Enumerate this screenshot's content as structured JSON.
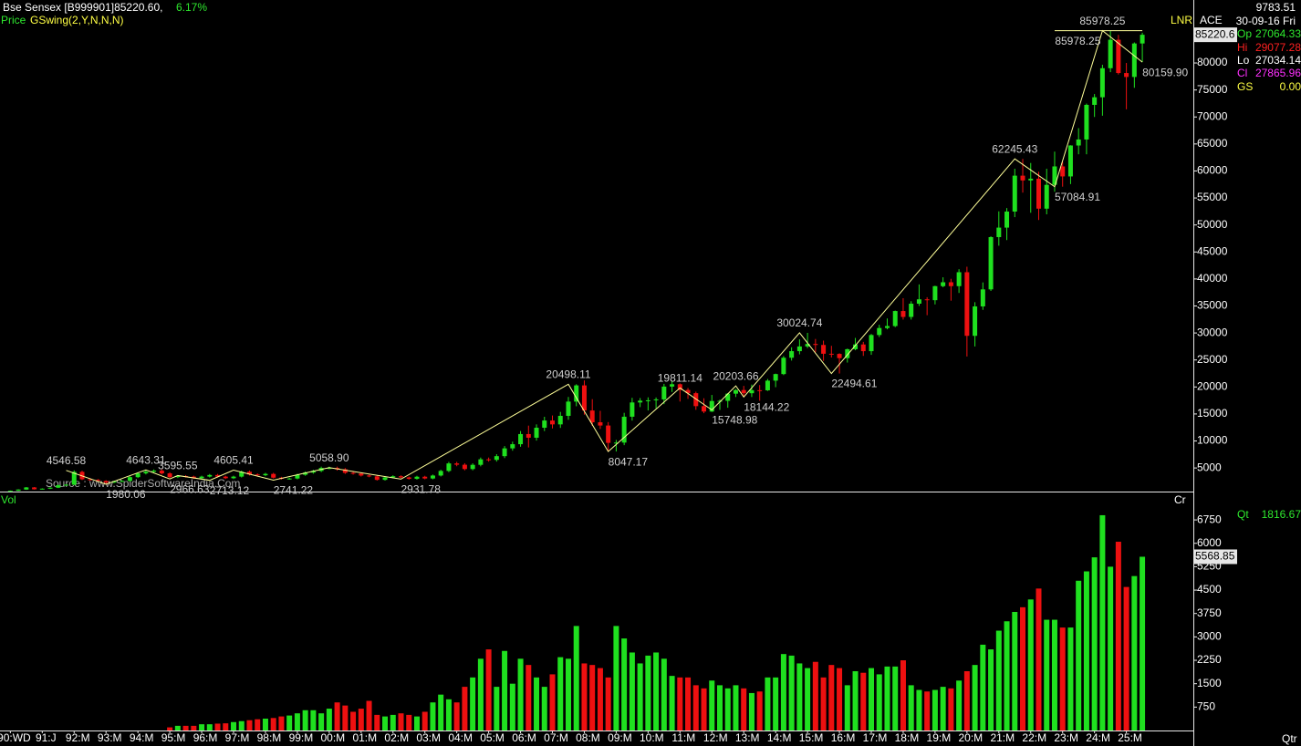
{
  "chart_data": {
    "type": "candlestick",
    "title": "Bse Sensex [B999901]85220.60,",
    "change": "6.17%",
    "indicator_label": "Price",
    "indicator": "GSwing(2,Y,N,N,N)",
    "source": "Source : www.SpiderSoftwareIndia.Com",
    "volume_label": "Vol",
    "volume_unit": "Cr",
    "period": "Qtr",
    "lnr": "LNR",
    "ace": "ACE",
    "info": {
      "value": "9783.51",
      "date": "30-09-16 Fri",
      "open_label": "Op",
      "open": "27064.33",
      "high_label": "Hi",
      "high": "29077.28",
      "low_label": "Lo",
      "low": "27034.14",
      "close_label": "Cl",
      "close": "27865.96",
      "gs_label": "GS",
      "gs": "0.00",
      "qt_label": "Qt",
      "qt": "1816.67"
    },
    "up_color": "#1fe01f",
    "down_color": "#ee1010",
    "swing_color": "#ffff99",
    "ylim": [
      800,
      91660
    ],
    "yticks": [
      5000,
      10000,
      15000,
      20000,
      25000,
      30000,
      35000,
      40000,
      45000,
      50000,
      55000,
      60000,
      65000,
      70000,
      75000,
      80000
    ],
    "xlim": [
      -1.3,
      148.4
    ],
    "xticks": [
      {
        "value": 0,
        "label": "90:WD"
      },
      {
        "value": 4,
        "label": "91:J"
      },
      {
        "value": 8,
        "label": "92:M"
      },
      {
        "value": 12,
        "label": "93:M"
      },
      {
        "value": 16,
        "label": "94:M"
      },
      {
        "value": 20,
        "label": "95:M"
      },
      {
        "value": 24,
        "label": "96:M"
      },
      {
        "value": 28,
        "label": "97:M"
      },
      {
        "value": 32,
        "label": "98:M"
      },
      {
        "value": 36,
        "label": "99:M"
      },
      {
        "value": 40,
        "label": "00:M"
      },
      {
        "value": 44,
        "label": "01:M"
      },
      {
        "value": 48,
        "label": "02:M"
      },
      {
        "value": 52,
        "label": "03:M"
      },
      {
        "value": 56,
        "label": "04:M"
      },
      {
        "value": 60,
        "label": "05:M"
      },
      {
        "value": 64,
        "label": "06:M"
      },
      {
        "value": 68,
        "label": "07:M"
      },
      {
        "value": 72,
        "label": "08:M"
      },
      {
        "value": 76,
        "label": "09:M"
      },
      {
        "value": 80,
        "label": "10:M"
      },
      {
        "value": 84,
        "label": "11:M"
      },
      {
        "value": 88,
        "label": "12:M"
      },
      {
        "value": 92,
        "label": "13:M"
      },
      {
        "value": 96,
        "label": "14:M"
      },
      {
        "value": 100,
        "label": "15:M"
      },
      {
        "value": 104,
        "label": "16:M"
      },
      {
        "value": 108,
        "label": "17:M"
      },
      {
        "value": 112,
        "label": "18:M"
      },
      {
        "value": 116,
        "label": "19:M"
      },
      {
        "value": 120,
        "label": "20:M"
      },
      {
        "value": 124,
        "label": "21:M"
      },
      {
        "value": 128,
        "label": "22:M"
      },
      {
        "value": 132,
        "label": "23:M"
      },
      {
        "value": 136,
        "label": "24:M"
      },
      {
        "value": 140,
        "label": "25:M"
      }
    ],
    "open": [
      700,
      780,
      1000,
      1400,
      1050,
      1170,
      1350,
      1800,
      1900,
      4280,
      2900,
      2800,
      2600,
      2300,
      2500,
      2600,
      3300,
      4000,
      4300,
      4500,
      4000,
      3300,
      3500,
      3400,
      3100,
      3400,
      3700,
      3400,
      3100,
      3400,
      4300,
      3800,
      3650,
      3900,
      3200,
      3000,
      3050,
      3740,
      4150,
      4450,
      5000,
      5000,
      4750,
      4100,
      3970,
      3600,
      3450,
      2800,
      3250,
      3470,
      3250,
      2990,
      3380,
      3050,
      3600,
      4450,
      5840,
      5600,
      4800,
      5580,
      6600,
      6500,
      7190,
      8630,
      9400,
      11280,
      10600,
      12450,
      13790,
      13070,
      14650,
      17290,
      20290,
      15640,
      13460,
      12860,
      9650,
      9700,
      14490,
      17130,
      17460,
      17530,
      17700,
      20070,
      20510,
      19440,
      18850,
      16450,
      15450,
      17400,
      17430,
      18760,
      19430,
      18840,
      19400,
      19380,
      21170,
      22390,
      25410,
      26630,
      27500,
      27960,
      27780,
      26150,
      26120,
      25340,
      26990,
      27870,
      26630,
      29620,
      30920,
      31280,
      34060,
      32970,
      35420,
      36230,
      36070,
      38670,
      39390,
      38670,
      41250,
      29470,
      34920,
      38070,
      47750,
      49510,
      52480,
      59130,
      58250,
      58570,
      53020,
      57430,
      60840,
      58990,
      64720,
      65830,
      72240,
      73650,
      79030,
      84300,
      78140,
      77410,
      83610
    ],
    "high": [
      820,
      1050,
      1470,
      1470,
      1230,
      1420,
      1890,
      2000,
      4550,
      4490,
      3050,
      2940,
      2730,
      2630,
      2730,
      3470,
      4200,
      4640,
      4730,
      4730,
      4200,
      3600,
      3680,
      3570,
      3570,
      3890,
      3890,
      3570,
      3570,
      4520,
      4520,
      3990,
      4100,
      4100,
      3360,
      3200,
      3930,
      4360,
      4670,
      5250,
      5250,
      5250,
      4990,
      4310,
      4170,
      3780,
      3620,
      3410,
      3640,
      3640,
      3410,
      3550,
      3550,
      3780,
      4670,
      6130,
      6130,
      5880,
      5860,
      6930,
      6930,
      7550,
      9060,
      9870,
      11840,
      12840,
      13070,
      14480,
      14720,
      15380,
      18150,
      20500,
      21210,
      17740,
      15580,
      13500,
      10190,
      15210,
      17990,
      17950,
      18080,
      18050,
      20580,
      21110,
      20660,
      19810,
      19130,
      17910,
      18520,
      17660,
      18870,
      19610,
      20200,
      20440,
      20350,
      21480,
      22470,
      25730,
      27350,
      28820,
      30020,
      28890,
      28580,
      27620,
      26240,
      27100,
      29080,
      28350,
      29820,
      31520,
      32690,
      34140,
      36440,
      35880,
      38990,
      36620,
      38750,
      40310,
      40030,
      41810,
      42270,
      35700,
      39360,
      47900,
      52520,
      53130,
      60410,
      62240,
      61480,
      59850,
      60410,
      63580,
      61680,
      64770,
      67930,
      72480,
      74250,
      79670,
      85980,
      85200,
      80000,
      83800,
      85600
    ],
    "low": [
      670,
      740,
      950,
      1000,
      1000,
      1110,
      1280,
      1710,
      1800,
      2760,
      2660,
      2470,
      1980,
      2190,
      2380,
      2470,
      3140,
      3800,
      4090,
      3800,
      3140,
      3140,
      3230,
      2950,
      2950,
      3230,
      3230,
      2950,
      2950,
      3230,
      3610,
      3470,
      3470,
      3040,
      2850,
      2850,
      2900,
      3550,
      3940,
      4230,
      4750,
      4510,
      3900,
      3770,
      3420,
      3280,
      2660,
      2660,
      3090,
      3090,
      2840,
      2840,
      2900,
      2900,
      3420,
      4230,
      5320,
      4560,
      4560,
      5300,
      6180,
      6180,
      6830,
      8200,
      8930,
      8800,
      10070,
      11830,
      12320,
      12420,
      13920,
      16430,
      14860,
      12790,
      12220,
      8050,
      8050,
      9220,
      13770,
      16270,
      15650,
      16020,
      16820,
      19070,
      17300,
      17790,
      15770,
      15140,
      15350,
      15750,
      16150,
      18140,
      18140,
      18140,
      17450,
      19260,
      19960,
      22200,
      24890,
      26040,
      27200,
      26420,
      24830,
      25450,
      22490,
      24520,
      26800,
      25750,
      25950,
      29240,
      30680,
      31080,
      32480,
      32480,
      35010,
      33290,
      35290,
      38460,
      35980,
      37410,
      25640,
      27500,
      34280,
      37780,
      46160,
      47200,
      51450,
      55990,
      52260,
      50920,
      51970,
      56150,
      57090,
      57570,
      63090,
      63090,
      70000,
      70230,
      78300,
      77860,
      71420,
      75400,
      80160
    ],
    "close": [
      780,
      1000,
      1400,
      1050,
      1170,
      1350,
      1800,
      1900,
      4280,
      2900,
      2800,
      2600,
      2300,
      2500,
      2600,
      3300,
      4000,
      4300,
      4500,
      4000,
      3300,
      3500,
      3400,
      3100,
      3400,
      3700,
      3400,
      3100,
      3400,
      4300,
      3800,
      3650,
      3900,
      3200,
      3000,
      3050,
      3740,
      4150,
      4450,
      5000,
      5000,
      4750,
      4100,
      3970,
      3600,
      3450,
      2800,
      3250,
      3470,
      3250,
      2990,
      3380,
      3050,
      3600,
      4450,
      5840,
      5600,
      4800,
      5580,
      6600,
      6500,
      7190,
      8630,
      9400,
      11280,
      10600,
      12450,
      13790,
      13070,
      14650,
      17290,
      20290,
      15640,
      13460,
      12860,
      9650,
      9700,
      14490,
      17130,
      17460,
      17530,
      17700,
      20070,
      20510,
      19440,
      18850,
      16450,
      15450,
      17400,
      17430,
      18760,
      19430,
      18840,
      19400,
      19380,
      21170,
      22390,
      25410,
      26630,
      27500,
      27960,
      27780,
      26150,
      26120,
      25340,
      26990,
      27870,
      26630,
      29620,
      30920,
      31280,
      34060,
      32970,
      35420,
      36230,
      36070,
      38670,
      39390,
      38670,
      41250,
      29470,
      34920,
      38070,
      47750,
      49510,
      52480,
      59130,
      58250,
      58570,
      53020,
      57430,
      60840,
      58990,
      64720,
      65830,
      72240,
      73650,
      79030,
      84300,
      78140,
      77410,
      83610,
      85220.6
    ],
    "swings": [
      {
        "x": 7,
        "value": 4546.58
      },
      {
        "x": 12,
        "value": 1980.06
      },
      {
        "x": 17,
        "value": 4643.31
      },
      {
        "x": 20,
        "value": 2966.63
      },
      {
        "x": 21,
        "value": 3595.55
      },
      {
        "x": 25,
        "value": 2713.12
      },
      {
        "x": 28,
        "value": 4605.41
      },
      {
        "x": 33,
        "value": 2741.22
      },
      {
        "x": 40,
        "value": 5058.9,
        "label": "5058.90"
      },
      {
        "x": 49,
        "value": 2931.78
      },
      {
        "x": 70,
        "value": 20498.11
      },
      {
        "x": 75,
        "value": 8047.17
      },
      {
        "x": 84,
        "value": 19811.14
      },
      {
        "x": 88,
        "value": 15748.98
      },
      {
        "x": 91,
        "value": 20203.66
      },
      {
        "x": 92,
        "value": 18144.22
      },
      {
        "x": 99,
        "value": 30024.74
      },
      {
        "x": 103,
        "value": 22494.61
      },
      {
        "x": 126,
        "value": 62245.43
      },
      {
        "x": 131,
        "value": 57084.91
      },
      {
        "x": 137,
        "value": 85978.25
      },
      {
        "x": 142,
        "value": 80159.9,
        "label": "80159.90"
      }
    ],
    "volume": {
      "ylim": [
        0,
        7600
      ],
      "yticks": [
        750,
        1500,
        2250,
        3000,
        3750,
        4500,
        5250,
        6000,
        6750
      ],
      "values": [
        null,
        null,
        null,
        null,
        null,
        null,
        null,
        null,
        null,
        null,
        null,
        null,
        null,
        null,
        null,
        null,
        null,
        null,
        null,
        null,
        100,
        150,
        150,
        150,
        200,
        200,
        220,
        230,
        270,
        300,
        330,
        360,
        380,
        400,
        450,
        480,
        550,
        650,
        650,
        550,
        700,
        900,
        800,
        600,
        700,
        950,
        500,
        450,
        500,
        550,
        500,
        450,
        600,
        900,
        1150,
        1000,
        900,
        1400,
        1700,
        2300,
        2600,
        1400,
        2550,
        1500,
        2300,
        2100,
        1700,
        1400,
        1800,
        2350,
        2300,
        3350,
        2150,
        2100,
        2000,
        1700,
        3350,
        2950,
        2500,
        2150,
        2400,
        2500,
        2300,
        1750,
        1700,
        1700,
        1450,
        1350,
        1600,
        1450,
        1350,
        1450,
        1350,
        1200,
        1250,
        1700,
        1700,
        2450,
        2400,
        2150,
        2000,
        2200,
        1700,
        2100,
        2000,
        1450,
        1900,
        1850,
        2000,
        1800,
        2050,
        2050,
        2250,
        1450,
        1300,
        1250,
        1300,
        1400,
        1350,
        1600,
        1900,
        2100,
        2750,
        2600,
        3200,
        3500,
        3800,
        3950,
        4200,
        4550,
        3550,
        3550,
        3300,
        3300,
        4800,
        5100,
        5550,
        6900,
        5250,
        6050,
        4600,
        4950,
        5568.85
      ]
    }
  }
}
